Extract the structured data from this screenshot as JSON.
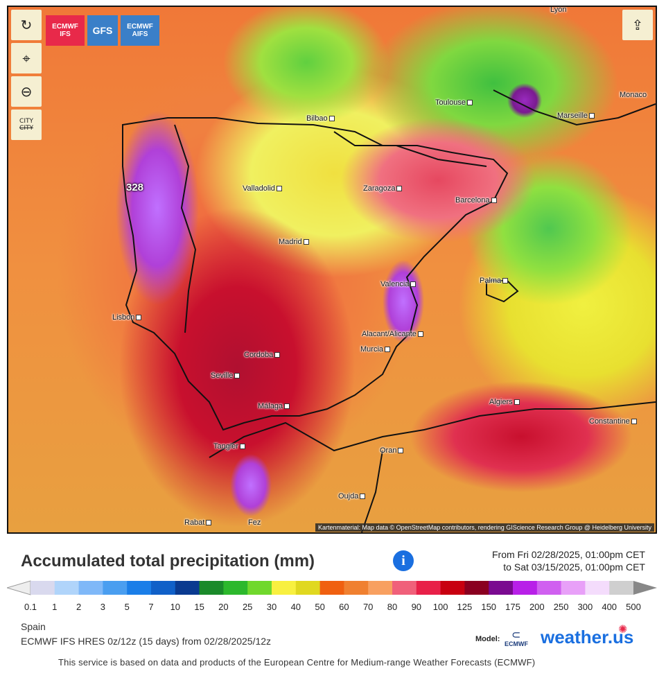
{
  "map": {
    "controls": {
      "city_label_top": "CITY",
      "city_label_bottom": "CITY"
    },
    "models": [
      {
        "label_line1": "ECMWF",
        "label_line2": "IFS",
        "color": "#e8294a"
      },
      {
        "label_line1": "GFS",
        "label_line2": "",
        "color": "#3a7fc8"
      },
      {
        "label_line1": "ECMWF",
        "label_line2": "AIFS",
        "color": "#3a7fc8"
      }
    ],
    "cities": [
      "Lyon",
      "Toulouse",
      "Marseille",
      "Monaco",
      "Bilbao",
      "Valladolid",
      "Zaragoza",
      "Barcelona",
      "Madrid",
      "Palma",
      "Valencia",
      "Lisbon",
      "Alacant/Alicante",
      "Murcia",
      "Cordoba",
      "Seville",
      "Málaga",
      "Algiers",
      "Constantine",
      "Tangier",
      "Oran",
      "Oujda",
      "Rabat",
      "Fez"
    ],
    "peak_value": "328",
    "attribution": "Kartenmaterial: Map data © OpenStreetMap contributors, rendering GIScience Research Group @ Heidelberg University"
  },
  "title": "Accumulated total precipitation (mm)",
  "date_from": "From Fri 02/28/2025, 01:00pm CET",
  "date_to": "to Sat 03/15/2025, 01:00pm CET",
  "scale": {
    "labels": [
      "0.1",
      "1",
      "2",
      "3",
      "5",
      "7",
      "10",
      "15",
      "20",
      "25",
      "30",
      "40",
      "50",
      "60",
      "70",
      "80",
      "90",
      "100",
      "125",
      "150",
      "175",
      "200",
      "250",
      "300",
      "400",
      "500"
    ],
    "colors": [
      "#d9d9ee",
      "#b0d4fa",
      "#7fb8f8",
      "#4a9ef0",
      "#1a7ee8",
      "#1060c8",
      "#0a3a90",
      "#1a8a2a",
      "#2cb82c",
      "#70d82c",
      "#f8f040",
      "#e0d820",
      "#f06010",
      "#f08030",
      "#f8a060",
      "#f0607a",
      "#e82048",
      "#c80010",
      "#8a0020",
      "#7a0a90",
      "#b820e8",
      "#d060f0",
      "#e8a0f8",
      "#f4dcfc",
      "#cfcfcf"
    ],
    "low_color": "#eeeeee",
    "high_color": "#888888"
  },
  "region": "Spain",
  "run_info": "ECMWF IFS HRES 0z/12z (15 days) from 02/28/2025/12z",
  "model_label": "Model:",
  "model_logo": "ECMWF",
  "brand": "weather.us",
  "footnote": "This service is based on data and products of the European Centre for Medium-range Weather Forecasts (ECMWF)"
}
